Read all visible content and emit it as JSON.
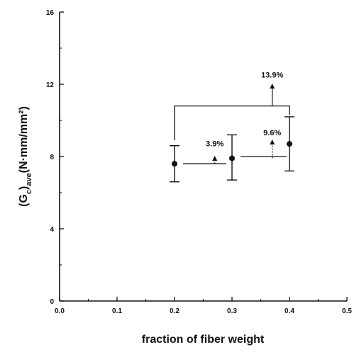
{
  "chart_data": {
    "type": "scatter",
    "title": "",
    "xlabel": "fraction of fiber weight",
    "ylabel_parts": {
      "base": "(G",
      "sub1": "c",
      "mid": ")",
      "sub2": "ave",
      "unit": "(N·mm/mm²)"
    },
    "xlim": [
      0.0,
      0.5
    ],
    "ylim": [
      0,
      16
    ],
    "xticks": [
      "0.0",
      "0.1",
      "0.2",
      "0.3",
      "0.4",
      "0.5"
    ],
    "yticks": [
      "0",
      "4",
      "8",
      "12",
      "16"
    ],
    "grid": false,
    "legend": "none",
    "series": [
      {
        "x": [
          0.2,
          0.3,
          0.4
        ],
        "y": [
          7.6,
          7.9,
          8.7
        ],
        "err_low": [
          6.6,
          6.7,
          7.2
        ],
        "err_high": [
          8.6,
          9.2,
          10.2
        ]
      }
    ],
    "annotations": [
      {
        "text": "3.9%",
        "from": 0.2,
        "to": 0.3,
        "x": 0.27,
        "y_low": 7.6,
        "y_high": 8.0,
        "text_y": 8.5
      },
      {
        "text": "9.6%",
        "from": 0.3,
        "to": 0.4,
        "x": 0.37,
        "y_low": 7.9,
        "y_high": 8.9,
        "text_y": 9.1
      },
      {
        "text": "13.9%",
        "from": 0.2,
        "to": 0.4,
        "x": 0.37,
        "y_low": 10.8,
        "y_high": 12.0,
        "text_y": 12.3
      }
    ]
  }
}
